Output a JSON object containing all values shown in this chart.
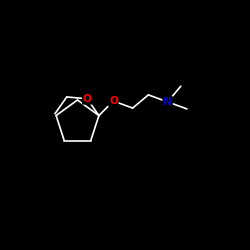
{
  "bg_color": "#000000",
  "line_color": "#ffffff",
  "atom_colors": {
    "O": "#ff0000",
    "N": "#0000cd"
  },
  "figsize": [
    2.5,
    2.5
  ],
  "dpi": 100,
  "lw": 1.2,
  "fontsize": 7.5
}
